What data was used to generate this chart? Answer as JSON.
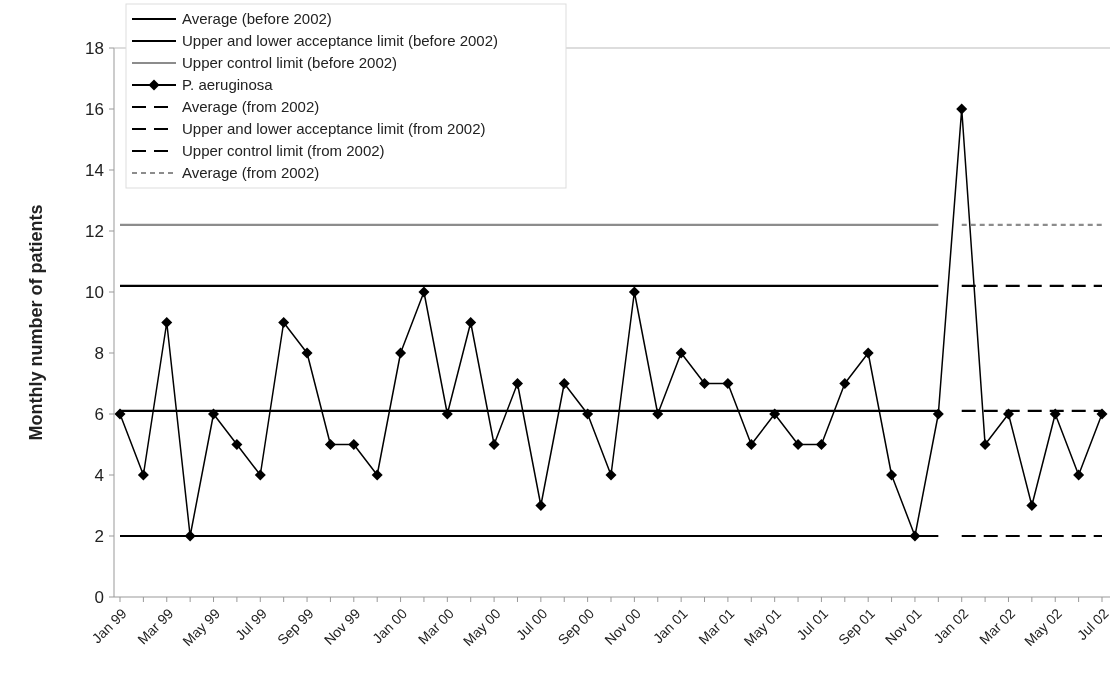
{
  "chart_data": {
    "type": "line",
    "ylabel": "Monthly number of patients",
    "categories": [
      "Jan 99",
      null,
      "Mar 99",
      null,
      "May 99",
      null,
      "Jul 99",
      null,
      "Sep 99",
      null,
      "Nov 99",
      null,
      "Jan 00",
      null,
      "Mar 00",
      null,
      "May 00",
      null,
      "Jul 00",
      null,
      "Sep 00",
      null,
      "Nov 00",
      null,
      "Jan 01",
      null,
      "Mar 01",
      null,
      "May 01",
      null,
      "Jul 01",
      null,
      "Sep 01",
      null,
      "Nov 01",
      null,
      "Jan 02",
      null,
      "Mar 02",
      null,
      "May 02",
      null,
      "Jul 02"
    ],
    "ylim": [
      0,
      18
    ],
    "yticks": [
      0,
      2,
      4,
      6,
      8,
      10,
      12,
      14,
      16,
      18
    ],
    "legend": "top left",
    "series": [
      {
        "name": "Average (before 2002)",
        "color": "#000000",
        "line_style": "solid",
        "marker": "none",
        "values": [
          6.1,
          6.1,
          6.1,
          6.1,
          6.1,
          6.1,
          6.1,
          6.1,
          6.1,
          6.1,
          6.1,
          6.1,
          6.1,
          6.1,
          6.1,
          6.1,
          6.1,
          6.1,
          6.1,
          6.1,
          6.1,
          6.1,
          6.1,
          6.1,
          6.1,
          6.1,
          6.1,
          6.1,
          6.1,
          6.1,
          6.1,
          6.1,
          6.1,
          6.1,
          6.1,
          6.1,
          null,
          null,
          null,
          null,
          null,
          null,
          null
        ]
      },
      {
        "name": "Upper and lower acceptance limit (before 2002)",
        "color": "#000000",
        "line_style": "solid",
        "marker": "none",
        "values": [
          10.2,
          10.2,
          10.2,
          10.2,
          10.2,
          10.2,
          10.2,
          10.2,
          10.2,
          10.2,
          10.2,
          10.2,
          10.2,
          10.2,
          10.2,
          10.2,
          10.2,
          10.2,
          10.2,
          10.2,
          10.2,
          10.2,
          10.2,
          10.2,
          10.2,
          10.2,
          10.2,
          10.2,
          10.2,
          10.2,
          10.2,
          10.2,
          10.2,
          10.2,
          10.2,
          10.2,
          null,
          null,
          null,
          null,
          null,
          null,
          null
        ]
      },
      {
        "color": "#000000",
        "line_style": "solid",
        "marker": "none",
        "values": [
          2,
          2,
          2,
          2,
          2,
          2,
          2,
          2,
          2,
          2,
          2,
          2,
          2,
          2,
          2,
          2,
          2,
          2,
          2,
          2,
          2,
          2,
          2,
          2,
          2,
          2,
          2,
          2,
          2,
          2,
          2,
          2,
          2,
          2,
          2,
          2,
          null,
          null,
          null,
          null,
          null,
          null,
          null
        ]
      },
      {
        "name": "Upper control limit (before 2002)",
        "color": "#8c8c8c",
        "line_style": "solid",
        "marker": "none",
        "values": [
          12.2,
          12.2,
          12.2,
          12.2,
          12.2,
          12.2,
          12.2,
          12.2,
          12.2,
          12.2,
          12.2,
          12.2,
          12.2,
          12.2,
          12.2,
          12.2,
          12.2,
          12.2,
          12.2,
          12.2,
          12.2,
          12.2,
          12.2,
          12.2,
          12.2,
          12.2,
          12.2,
          12.2,
          12.2,
          12.2,
          12.2,
          12.2,
          12.2,
          12.2,
          12.2,
          12.2,
          null,
          null,
          null,
          null,
          null,
          null,
          null
        ]
      },
      {
        "name": "P. aeruginosa",
        "color": "#000000",
        "line_style": "solid",
        "marker": "diamond",
        "values": [
          6,
          4,
          9,
          2,
          6,
          5,
          4,
          9,
          8,
          5,
          5,
          4,
          8,
          10,
          6,
          9,
          5,
          7,
          3,
          7,
          6,
          4,
          10,
          6,
          8,
          7,
          7,
          5,
          6,
          5,
          5,
          7,
          8,
          4,
          2,
          6,
          16,
          5,
          6,
          3,
          6,
          4,
          6
        ]
      },
      {
        "name": "Average (from 2002)",
        "color": "#000000",
        "line_style": "dashed",
        "marker": "none",
        "values": [
          null,
          null,
          null,
          null,
          null,
          null,
          null,
          null,
          null,
          null,
          null,
          null,
          null,
          null,
          null,
          null,
          null,
          null,
          null,
          null,
          null,
          null,
          null,
          null,
          null,
          null,
          null,
          null,
          null,
          null,
          null,
          null,
          null,
          null,
          null,
          null,
          6.1,
          6.1,
          6.1,
          6.1,
          6.1,
          6.1,
          6.1
        ]
      },
      {
        "name": "Upper and lower acceptance limit (from 2002)",
        "color": "#000000",
        "line_style": "dashed",
        "marker": "none",
        "values": [
          null,
          null,
          null,
          null,
          null,
          null,
          null,
          null,
          null,
          null,
          null,
          null,
          null,
          null,
          null,
          null,
          null,
          null,
          null,
          null,
          null,
          null,
          null,
          null,
          null,
          null,
          null,
          null,
          null,
          null,
          null,
          null,
          null,
          null,
          null,
          null,
          10.2,
          10.2,
          10.2,
          10.2,
          10.2,
          10.2,
          10.2
        ]
      },
      {
        "color": "#000000",
        "line_style": "dashed",
        "marker": "none",
        "values": [
          null,
          null,
          null,
          null,
          null,
          null,
          null,
          null,
          null,
          null,
          null,
          null,
          null,
          null,
          null,
          null,
          null,
          null,
          null,
          null,
          null,
          null,
          null,
          null,
          null,
          null,
          null,
          null,
          null,
          null,
          null,
          null,
          null,
          null,
          null,
          null,
          2,
          2,
          2,
          2,
          2,
          2,
          2
        ]
      },
      {
        "name": "Upper control limit (from 2002)",
        "color": "#000000",
        "line_style": "dashed",
        "marker": "none",
        "values": [
          null,
          null,
          null,
          null,
          null,
          null,
          null,
          null,
          null,
          null,
          null,
          null,
          null,
          null,
          null,
          null,
          null,
          null,
          null,
          null,
          null,
          null,
          null,
          null,
          null,
          null,
          null,
          null,
          null,
          null,
          null,
          null,
          null,
          null,
          null,
          null,
          null,
          null,
          null,
          null,
          null,
          null,
          null
        ]
      },
      {
        "name": "Average (from 2002)",
        "color": "#8c8c8c",
        "line_style": "dotted",
        "marker": "none",
        "values": [
          null,
          null,
          null,
          null,
          null,
          null,
          null,
          null,
          null,
          null,
          null,
          null,
          null,
          null,
          null,
          null,
          null,
          null,
          null,
          null,
          null,
          null,
          null,
          null,
          null,
          null,
          null,
          null,
          null,
          null,
          null,
          null,
          null,
          null,
          null,
          null,
          12.2,
          12.2,
          12.2,
          12.2,
          12.2,
          12.2,
          12.2
        ]
      }
    ]
  }
}
